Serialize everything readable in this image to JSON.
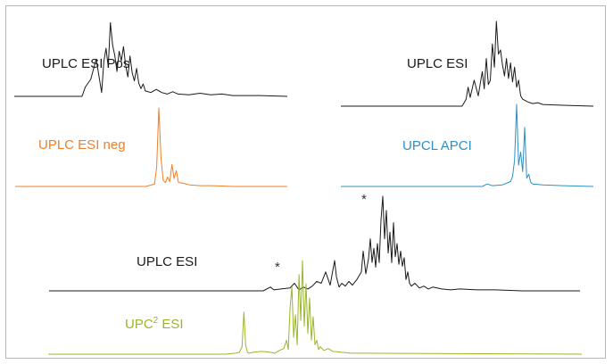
{
  "chart_data": [
    {
      "type": "line",
      "label": "UPLC ESI Pos",
      "color": "#1a1a1a",
      "x": [
        0,
        62,
        65,
        70,
        75,
        80,
        82,
        84,
        86,
        88,
        90,
        92,
        94,
        96,
        98,
        100,
        102,
        104,
        106,
        108,
        110,
        112,
        114,
        116,
        118,
        120,
        125,
        130,
        135,
        140,
        145,
        150,
        160,
        170,
        180,
        190,
        200,
        225,
        250
      ],
      "y": [
        0,
        0,
        0.12,
        0.22,
        0.48,
        0.05,
        0.45,
        0.62,
        0.38,
        0.95,
        0.66,
        0.53,
        0.32,
        0.58,
        0.46,
        0.64,
        0.4,
        0.25,
        0.52,
        0.3,
        0.2,
        0.36,
        0.17,
        0.1,
        0.16,
        0.07,
        0.05,
        0.09,
        0.05,
        0.03,
        0.06,
        0.03,
        0.02,
        0.04,
        0.02,
        0.03,
        0.01,
        0.01,
        0
      ]
    },
    {
      "type": "line",
      "label": "UPLC ESI neg",
      "color": "#f07f28",
      "x": [
        0,
        100,
        120,
        128,
        130,
        132,
        134,
        136,
        138,
        140,
        142,
        144,
        146,
        148,
        150,
        155,
        160,
        170,
        180,
        200,
        225,
        250
      ],
      "y": [
        0,
        0,
        0,
        0.03,
        0.25,
        1.0,
        0.35,
        0.08,
        0.05,
        0.12,
        0.06,
        0.28,
        0.1,
        0.2,
        0.05,
        0.04,
        0.02,
        0.01,
        0.01,
        0,
        0,
        0
      ]
    },
    {
      "type": "line",
      "label": "UPLC ESI",
      "color": "#1a1a1a",
      "x": [
        0,
        120,
        124,
        126,
        128,
        132,
        136,
        140,
        142,
        144,
        146,
        148,
        150,
        152,
        154,
        156,
        158,
        160,
        162,
        164,
        166,
        168,
        170,
        172,
        174,
        176,
        178,
        180,
        185,
        190,
        195,
        200,
        220,
        250
      ],
      "y": [
        0,
        0,
        0.08,
        0.22,
        0.1,
        0.3,
        0.12,
        0.4,
        0.2,
        0.55,
        0.25,
        0.3,
        0.72,
        0.45,
        0.98,
        0.6,
        0.65,
        0.48,
        0.35,
        0.55,
        0.32,
        0.5,
        0.28,
        0.45,
        0.22,
        0.3,
        0.12,
        0.08,
        0.05,
        0.03,
        0.04,
        0.02,
        0.01,
        0
      ]
    },
    {
      "type": "line",
      "label": "UPCL APCI",
      "color": "#2e8fc6",
      "x": [
        0,
        140,
        145,
        150,
        160,
        168,
        170,
        172,
        174,
        176,
        178,
        180,
        182,
        184,
        186,
        188,
        190,
        200,
        220,
        250
      ],
      "y": [
        0,
        0,
        0.03,
        0.01,
        0.02,
        0.06,
        0.12,
        0.32,
        1.0,
        0.26,
        0.42,
        0.18,
        0.72,
        0.1,
        0.15,
        0.05,
        0.03,
        0.02,
        0.01,
        0
      ]
    },
    {
      "type": "line",
      "label": "UPLC ESI",
      "color": "#1a1a1a",
      "x": [
        0,
        240,
        248,
        252,
        260,
        270,
        275,
        280,
        285,
        290,
        295,
        300,
        305,
        310,
        315,
        320,
        322,
        325,
        328,
        332,
        336,
        340,
        345,
        350,
        352,
        355,
        358,
        360,
        362,
        364,
        366,
        368,
        370,
        372,
        374,
        376,
        378,
        380,
        382,
        384,
        386,
        388,
        390,
        392,
        394,
        396,
        398,
        400,
        402,
        404,
        406,
        410,
        415,
        420,
        425,
        430,
        440,
        450,
        460,
        480,
        500,
        530,
        560,
        595
      ],
      "y": [
        0,
        0,
        0.04,
        0.01,
        0.02,
        0.03,
        0.08,
        0.01,
        0.04,
        0.02,
        0.05,
        0.1,
        0.08,
        0.2,
        0.06,
        0.32,
        0.15,
        0.04,
        0.08,
        0.05,
        0.1,
        0.06,
        0.12,
        0.2,
        0.42,
        0.18,
        0.34,
        0.55,
        0.3,
        0.45,
        0.25,
        0.5,
        0.3,
        0.75,
        1.0,
        0.55,
        0.85,
        0.4,
        0.62,
        0.3,
        0.72,
        0.36,
        0.5,
        0.28,
        0.42,
        0.26,
        0.35,
        0.12,
        0.2,
        0.08,
        0.05,
        0.08,
        0.03,
        0.05,
        0.02,
        0.04,
        0.02,
        0.01,
        0.02,
        0.01,
        0.01,
        0,
        0,
        0
      ]
    },
    {
      "type": "line",
      "label": "UPC² ESI",
      "color": "#9ab62c",
      "x": [
        0,
        200,
        210,
        215,
        218,
        220,
        222,
        224,
        226,
        230,
        240,
        250,
        255,
        260,
        265,
        268,
        270,
        272,
        274,
        276,
        278,
        280,
        282,
        284,
        286,
        288,
        290,
        292,
        294,
        296,
        298,
        300,
        302,
        304,
        306,
        310,
        315,
        320,
        330,
        340,
        350,
        600
      ],
      "y": [
        0,
        0,
        0.01,
        0.02,
        0.08,
        0.45,
        0.1,
        0.02,
        0.01,
        0.02,
        0.03,
        0.02,
        0.01,
        0.04,
        0.06,
        0.15,
        0.05,
        0.5,
        0.72,
        0.18,
        0.42,
        0.1,
        0.85,
        0.36,
        1.0,
        0.3,
        0.75,
        0.22,
        0.6,
        0.15,
        0.4,
        0.1,
        0.15,
        0.05,
        0.08,
        0.04,
        0.06,
        0.03,
        0.02,
        0.01,
        0.01,
        0
      ]
    }
  ],
  "labels": {
    "esi_pos": "UPLC ESI Pos",
    "esi_neg": "UPLC ESI neg",
    "esi_top_right": "UPLC ESI",
    "apci": "UPCL APCI",
    "esi_bottom": "UPLC ESI",
    "upc2_prefix": "UPC",
    "upc2_sup": "2",
    "upc2_suffix": " ESI"
  },
  "annotations": [
    "*",
    "*"
  ]
}
